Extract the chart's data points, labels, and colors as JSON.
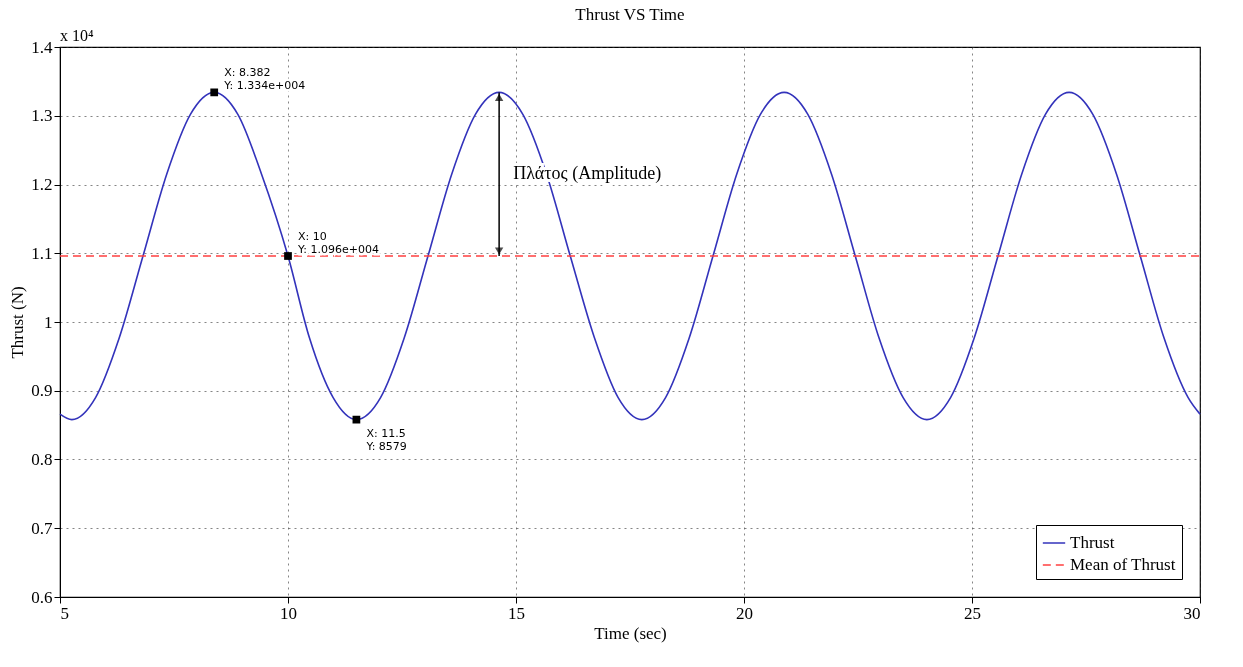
{
  "chart_data": {
    "type": "line",
    "title": "Thrust VS Time",
    "xlabel": "Time (sec)",
    "ylabel": "Thrust (N)",
    "xlim": [
      5,
      30
    ],
    "xticks": [
      5,
      10,
      15,
      20,
      25,
      30
    ],
    "ylim": [
      0.6,
      1.4
    ],
    "yticks": [
      0.6,
      0.7,
      0.8,
      0.9,
      1,
      1.1,
      1.2,
      1.3,
      1.4
    ],
    "grid": true,
    "legend": "bottom right",
    "series": [
      {
        "name": "Thrust",
        "color": "#3333bb",
        "line_style": "solid",
        "x": [
          5,
          5.26,
          5.78,
          6.3,
          6.82,
          7.34,
          7.86,
          8.382,
          8.9,
          9.42,
          10,
          10.47,
          10.99,
          11.5,
          12.03,
          12.55,
          13.07,
          13.59,
          14.11,
          14.63,
          15.15,
          15.67,
          16.19,
          16.72,
          17.24,
          17.76,
          18.28,
          18.8,
          19.32,
          19.84,
          20.36,
          20.88,
          21.4,
          21.92,
          22.44,
          22.96,
          23.49,
          24.01,
          24.53,
          25.05,
          25.57,
          26.09,
          26.61,
          27.13,
          27.65,
          28.17,
          28.69,
          29.21,
          29.74,
          30
        ],
        "values": [
          0.866,
          0.858,
          0.89,
          0.977,
          1.096,
          1.215,
          1.302,
          1.334,
          1.302,
          1.215,
          1.096,
          0.977,
          0.89,
          0.858,
          0.89,
          0.977,
          1.096,
          1.215,
          1.302,
          1.334,
          1.302,
          1.215,
          1.096,
          0.977,
          0.89,
          0.858,
          0.89,
          0.977,
          1.096,
          1.215,
          1.302,
          1.334,
          1.302,
          1.215,
          1.096,
          0.977,
          0.89,
          0.858,
          0.89,
          0.977,
          1.096,
          1.215,
          1.302,
          1.334,
          1.302,
          1.215,
          1.096,
          0.977,
          0.89,
          0.866
        ]
      },
      {
        "name": "Mean of Thrust",
        "color": "#ff4040",
        "line_style": "dashed",
        "x": [
          5,
          30
        ],
        "values": [
          1.096,
          1.096
        ]
      }
    ],
    "annotations": [
      "x 10⁴",
      {
        "text": "X: 8.382\nY: 1.334e+004",
        "x": 8.382,
        "y": 1.334
      },
      {
        "text": "X: 10\nY: 1.096e+004",
        "x": 10,
        "y": 1.096
      },
      {
        "text": "X: 11.5\nY: 8579",
        "x": 11.5,
        "y": 0.858
      },
      "Πλάτος (Amplitude)"
    ]
  }
}
